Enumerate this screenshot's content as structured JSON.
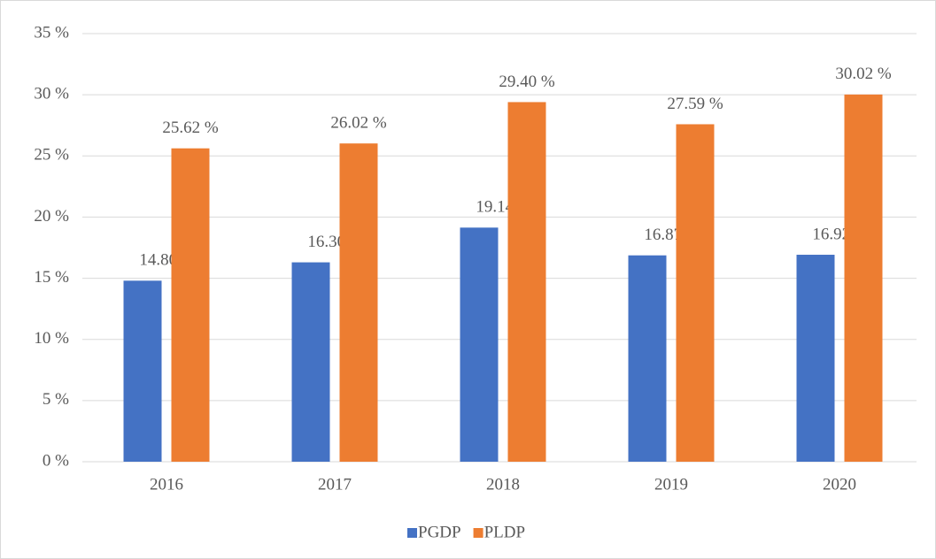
{
  "chart_data": {
    "type": "bar",
    "categories": [
      "2016",
      "2017",
      "2018",
      "2019",
      "2020"
    ],
    "series": [
      {
        "name": "PGDP",
        "color": "#4472c4",
        "values": [
          14.8,
          16.3,
          19.14,
          16.87,
          16.92
        ],
        "value_labels": [
          "14.80 %",
          "16.30 %",
          "19.14 %",
          "16.87 %",
          "16.92 %"
        ]
      },
      {
        "name": "PLDP",
        "color": "#ed7d31",
        "values": [
          25.62,
          26.02,
          29.4,
          27.59,
          30.02
        ],
        "value_labels": [
          "25.62 %",
          "26.02 %",
          "29.40 %",
          "27.59 %",
          "30.02 %"
        ]
      }
    ],
    "ylim": [
      0,
      35
    ],
    "yticks": [
      {
        "value": 0,
        "label": "0 %"
      },
      {
        "value": 5,
        "label": "5 %"
      },
      {
        "value": 10,
        "label": "10 %"
      },
      {
        "value": 15,
        "label": "15 %"
      },
      {
        "value": 20,
        "label": "20 %"
      },
      {
        "value": 25,
        "label": "25 %"
      },
      {
        "value": 30,
        "label": "30 %"
      },
      {
        "value": 35,
        "label": "35 %"
      }
    ],
    "grid": true,
    "legend": "bottom"
  }
}
